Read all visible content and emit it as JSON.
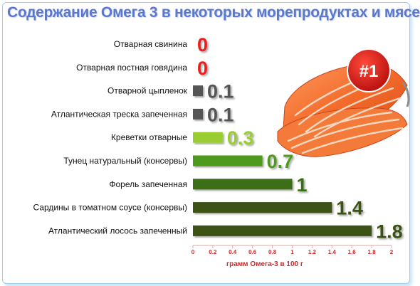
{
  "badge": "#1",
  "colors": {
    "zero_value": "#ee1c1c",
    "gray_bar": "#555555",
    "lime_bar": "#9acd32",
    "green_bar": "#4e9a1e",
    "dark_green_bar": "#3b6e12",
    "olive_bar": "#3d5214",
    "axis_text": "#cc2b2b",
    "title": "#5a78cf"
  },
  "chart_data": {
    "type": "bar",
    "orientation": "horizontal",
    "title": "Содержание Омега 3 в некоторых морепродуктах и мясе",
    "xlabel": "грамм Омега-3 в 100 г",
    "ylabel": "",
    "xlim": [
      0,
      2
    ],
    "ticks": [
      "0",
      "0.2",
      "0.4",
      "0.6",
      "0.8",
      "1",
      "1.2",
      "1.4",
      "1.6",
      "1.8",
      "2"
    ],
    "categories": [
      "Отварная свинина",
      "Отварная постная говядина",
      "Отварной цыпленок",
      "Атлантическая треска запеченная",
      "Креветки отварные",
      "Тунец натуральный (консервы)",
      "Форель запеченная",
      "Сардины в томатном соусе (консервы)",
      "Атлантический лосось запеченный"
    ],
    "values": [
      0,
      0,
      0.1,
      0.1,
      0.3,
      0.7,
      1,
      1.4,
      1.8
    ],
    "value_labels": [
      "0",
      "0",
      "0.1",
      "0.1",
      "0.3",
      "0.7",
      "1",
      "1.4",
      "1.8"
    ],
    "bar_colors": [
      "#ee1c1c",
      "#ee1c1c",
      "#555555",
      "#555555",
      "#9acd32",
      "#4e9a1e",
      "#3b6e12",
      "#3d5214",
      "#3d5214"
    ],
    "label_colors": [
      "#ee1c1c",
      "#ee1c1c",
      "#555555",
      "#555555",
      "#9acd32",
      "#4e9a1e",
      "#3b6e12",
      "#3d5214",
      "#3d5214"
    ],
    "grid": false,
    "legend": "none"
  }
}
